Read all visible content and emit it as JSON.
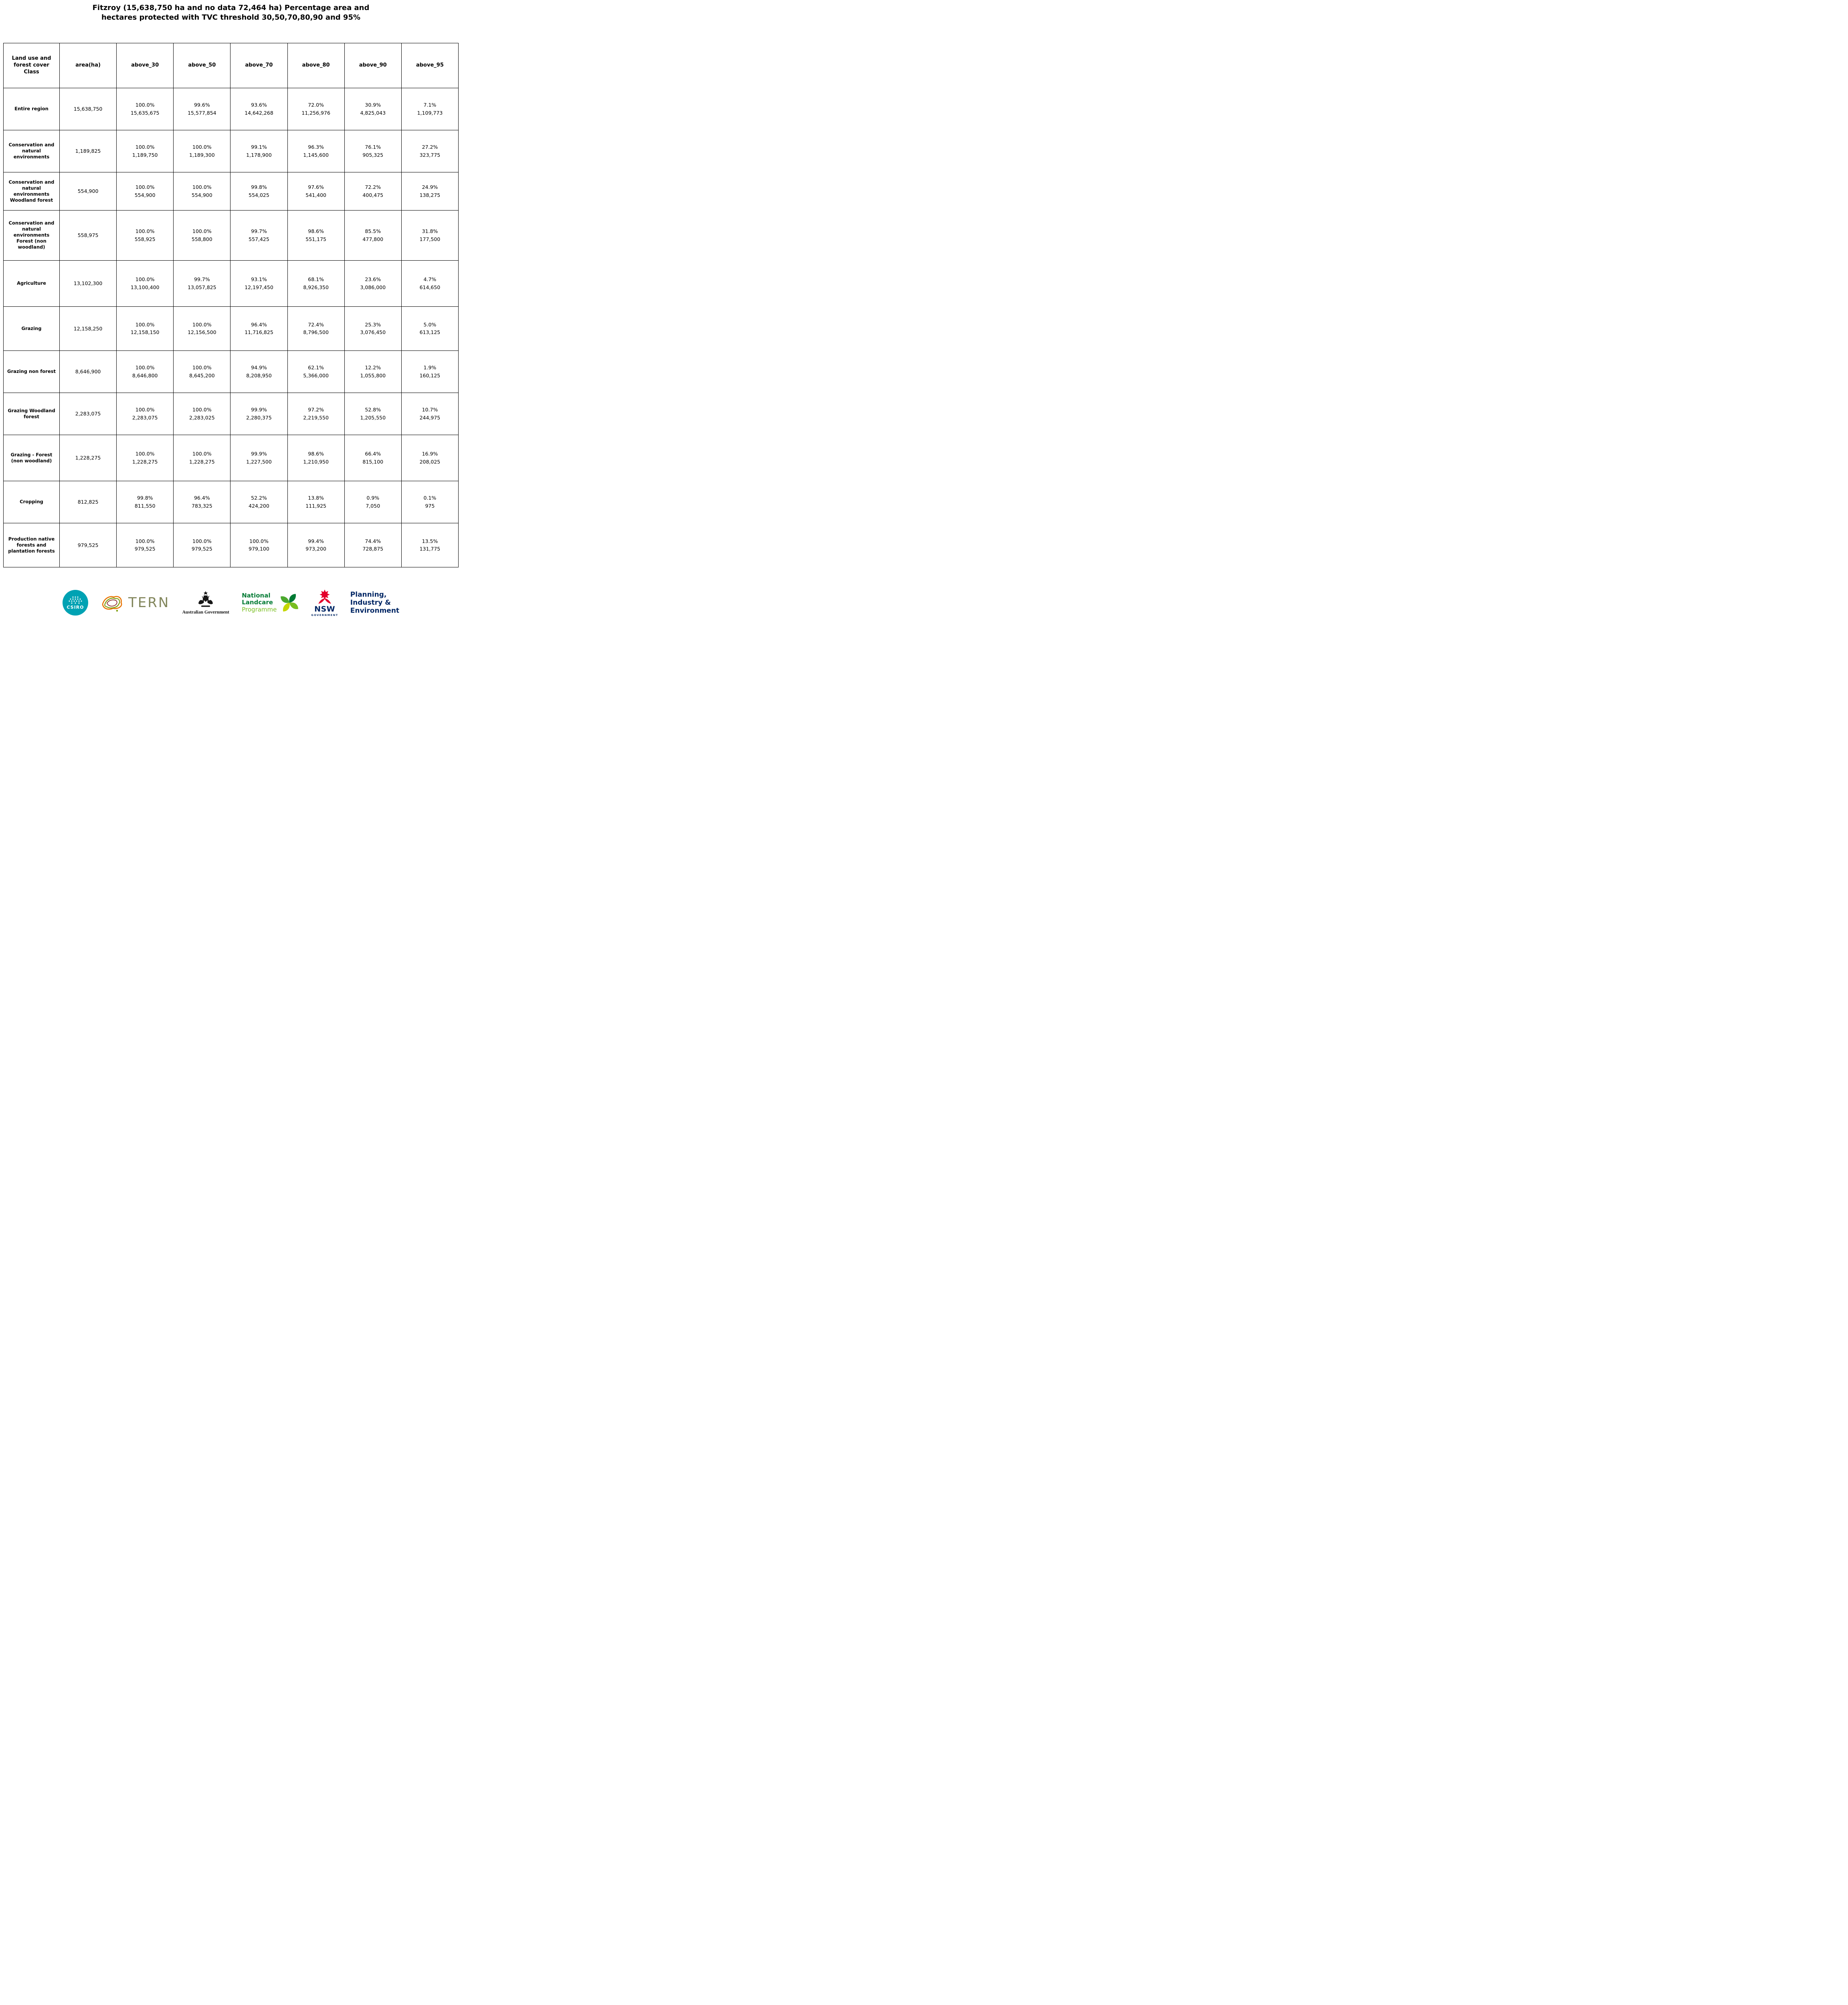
{
  "title": {
    "line1": "Fitzroy (15,638,750 ha and no data 72,464 ha) Percentage area and",
    "line2": "hectares protected with TVC threshold 30,50,70,80,90 and 95%"
  },
  "table": {
    "columns": [
      "Land use and forest cover Class",
      "area(ha)",
      "above_30",
      "above_50",
      "above_70",
      "above_80",
      "above_90",
      "above_95"
    ],
    "rows": [
      {
        "label": "Entire region",
        "area": "15,638,750",
        "values": [
          {
            "pct": "100.0%",
            "ha": "15,635,675"
          },
          {
            "pct": "99.6%",
            "ha": "15,577,854"
          },
          {
            "pct": "93.6%",
            "ha": "14,642,268"
          },
          {
            "pct": "72.0%",
            "ha": "11,256,976"
          },
          {
            "pct": "30.9%",
            "ha": "4,825,043"
          },
          {
            "pct": "7.1%",
            "ha": "1,109,773"
          }
        ]
      },
      {
        "label": "Conservation and natural environments",
        "area": "1,189,825",
        "values": [
          {
            "pct": "100.0%",
            "ha": "1,189,750"
          },
          {
            "pct": "100.0%",
            "ha": "1,189,300"
          },
          {
            "pct": "99.1%",
            "ha": "1,178,900"
          },
          {
            "pct": "96.3%",
            "ha": "1,145,600"
          },
          {
            "pct": "76.1%",
            "ha": "905,325"
          },
          {
            "pct": "27.2%",
            "ha": "323,775"
          }
        ]
      },
      {
        "label": "Conservation and natural environments Woodland forest",
        "area": "554,900",
        "values": [
          {
            "pct": "100.0%",
            "ha": "554,900"
          },
          {
            "pct": "100.0%",
            "ha": "554,900"
          },
          {
            "pct": "99.8%",
            "ha": "554,025"
          },
          {
            "pct": "97.6%",
            "ha": "541,400"
          },
          {
            "pct": "72.2%",
            "ha": "400,475"
          },
          {
            "pct": "24.9%",
            "ha": "138,275"
          }
        ]
      },
      {
        "label": "Conservation and natural environments Forest (non woodland)",
        "area": "558,975",
        "values": [
          {
            "pct": "100.0%",
            "ha": "558,925"
          },
          {
            "pct": "100.0%",
            "ha": "558,800"
          },
          {
            "pct": "99.7%",
            "ha": "557,425"
          },
          {
            "pct": "98.6%",
            "ha": "551,175"
          },
          {
            "pct": "85.5%",
            "ha": "477,800"
          },
          {
            "pct": "31.8%",
            "ha": "177,500"
          }
        ]
      },
      {
        "label": "Agriculture",
        "area": "13,102,300",
        "values": [
          {
            "pct": "100.0%",
            "ha": "13,100,400"
          },
          {
            "pct": "99.7%",
            "ha": "13,057,825"
          },
          {
            "pct": "93.1%",
            "ha": "12,197,450"
          },
          {
            "pct": "68.1%",
            "ha": "8,926,350"
          },
          {
            "pct": "23.6%",
            "ha": "3,086,000"
          },
          {
            "pct": "4.7%",
            "ha": "614,650"
          }
        ]
      },
      {
        "label": "Grazing",
        "area": "12,158,250",
        "values": [
          {
            "pct": "100.0%",
            "ha": "12,158,150"
          },
          {
            "pct": "100.0%",
            "ha": "12,156,500"
          },
          {
            "pct": "96.4%",
            "ha": "11,716,825"
          },
          {
            "pct": "72.4%",
            "ha": "8,796,500"
          },
          {
            "pct": "25.3%",
            "ha": "3,076,450"
          },
          {
            "pct": "5.0%",
            "ha": "613,125"
          }
        ]
      },
      {
        "label": "Grazing non forest",
        "area": "8,646,900",
        "values": [
          {
            "pct": "100.0%",
            "ha": "8,646,800"
          },
          {
            "pct": "100.0%",
            "ha": "8,645,200"
          },
          {
            "pct": "94.9%",
            "ha": "8,208,950"
          },
          {
            "pct": "62.1%",
            "ha": "5,366,000"
          },
          {
            "pct": "12.2%",
            "ha": "1,055,800"
          },
          {
            "pct": "1.9%",
            "ha": "160,125"
          }
        ]
      },
      {
        "label": "Grazing Woodland forest",
        "area": "2,283,075",
        "values": [
          {
            "pct": "100.0%",
            "ha": "2,283,075"
          },
          {
            "pct": "100.0%",
            "ha": "2,283,025"
          },
          {
            "pct": "99.9%",
            "ha": "2,280,375"
          },
          {
            "pct": "97.2%",
            "ha": "2,219,550"
          },
          {
            "pct": "52.8%",
            "ha": "1,205,550"
          },
          {
            "pct": "10.7%",
            "ha": "244,975"
          }
        ]
      },
      {
        "label": "Grazing - Forest (non woodland)",
        "area": "1,228,275",
        "values": [
          {
            "pct": "100.0%",
            "ha": "1,228,275"
          },
          {
            "pct": "100.0%",
            "ha": "1,228,275"
          },
          {
            "pct": "99.9%",
            "ha": "1,227,500"
          },
          {
            "pct": "98.6%",
            "ha": "1,210,950"
          },
          {
            "pct": "66.4%",
            "ha": "815,100"
          },
          {
            "pct": "16.9%",
            "ha": "208,025"
          }
        ]
      },
      {
        "label": "Cropping",
        "area": "812,825",
        "values": [
          {
            "pct": "99.8%",
            "ha": "811,550"
          },
          {
            "pct": "96.4%",
            "ha": "783,325"
          },
          {
            "pct": "52.2%",
            "ha": "424,200"
          },
          {
            "pct": "13.8%",
            "ha": "111,925"
          },
          {
            "pct": "0.9%",
            "ha": "7,050"
          },
          {
            "pct": "0.1%",
            "ha": "975"
          }
        ]
      },
      {
        "label": "Production native forests and plantation forests",
        "area": "979,525",
        "values": [
          {
            "pct": "100.0%",
            "ha": "979,525"
          },
          {
            "pct": "100.0%",
            "ha": "979,525"
          },
          {
            "pct": "100.0%",
            "ha": "979,100"
          },
          {
            "pct": "99.4%",
            "ha": "973,200"
          },
          {
            "pct": "74.4%",
            "ha": "728,875"
          },
          {
            "pct": "13.5%",
            "ha": "131,775"
          }
        ]
      }
    ]
  },
  "footer": {
    "csiro": {
      "label": "CSIRO",
      "color": "#00a2b3"
    },
    "tern": {
      "label": "TERN",
      "text_color": "#82865c"
    },
    "aus_gov": {
      "label": "Australian Government"
    },
    "landcare": {
      "line1": "National",
      "line2": "Landcare",
      "line3": "Programme",
      "dark_green": "#007a33",
      "light_green": "#78be20"
    },
    "nsw": {
      "label": "NSW",
      "sublabel": "GOVERNMENT",
      "red": "#e4002b",
      "navy": "#002664"
    },
    "dpie": {
      "line1": "Planning,",
      "line2": "Industry &",
      "line3": "Environment",
      "color": "#002664"
    }
  }
}
